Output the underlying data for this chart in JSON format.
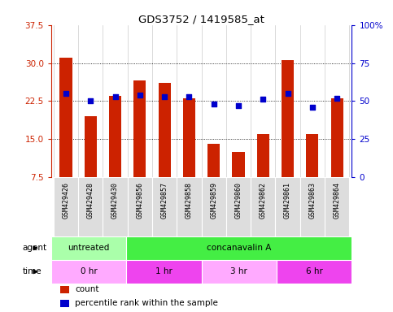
{
  "title": "GDS3752 / 1419585_at",
  "samples": [
    "GSM429426",
    "GSM429428",
    "GSM429430",
    "GSM429856",
    "GSM429857",
    "GSM429858",
    "GSM429859",
    "GSM429860",
    "GSM429862",
    "GSM429861",
    "GSM429863",
    "GSM429864"
  ],
  "counts": [
    31.0,
    19.5,
    23.5,
    26.5,
    26.0,
    23.0,
    14.0,
    12.5,
    16.0,
    30.5,
    16.0,
    23.0
  ],
  "percentile_ranks": [
    55,
    50,
    53,
    54,
    53,
    53,
    48,
    47,
    51,
    55,
    46,
    52
  ],
  "ylim_left": [
    7.5,
    37.5
  ],
  "ylim_right": [
    0,
    100
  ],
  "yticks_left": [
    7.5,
    15.0,
    22.5,
    30.0,
    37.5
  ],
  "yticks_right": [
    0,
    25,
    50,
    75,
    100
  ],
  "bar_color": "#cc2200",
  "dot_color": "#0000cc",
  "agent_row": [
    {
      "label": "untreated",
      "start": 0,
      "end": 3,
      "color": "#aaffaa"
    },
    {
      "label": "concanavalin A",
      "start": 3,
      "end": 12,
      "color": "#44ee44"
    }
  ],
  "time_row": [
    {
      "label": "0 hr",
      "start": 0,
      "end": 3,
      "color": "#ffaaff"
    },
    {
      "label": "1 hr",
      "start": 3,
      "end": 6,
      "color": "#ee44ee"
    },
    {
      "label": "3 hr",
      "start": 6,
      "end": 9,
      "color": "#ffaaff"
    },
    {
      "label": "6 hr",
      "start": 9,
      "end": 12,
      "color": "#ee44ee"
    }
  ],
  "tick_color_left": "#cc2200",
  "tick_color_right": "#0000cc",
  "bar_width": 0.5,
  "sample_bg": "#dddddd",
  "legend_items": [
    {
      "label": "count",
      "color": "#cc2200"
    },
    {
      "label": "percentile rank within the sample",
      "color": "#0000cc"
    }
  ],
  "n_samples": 12
}
